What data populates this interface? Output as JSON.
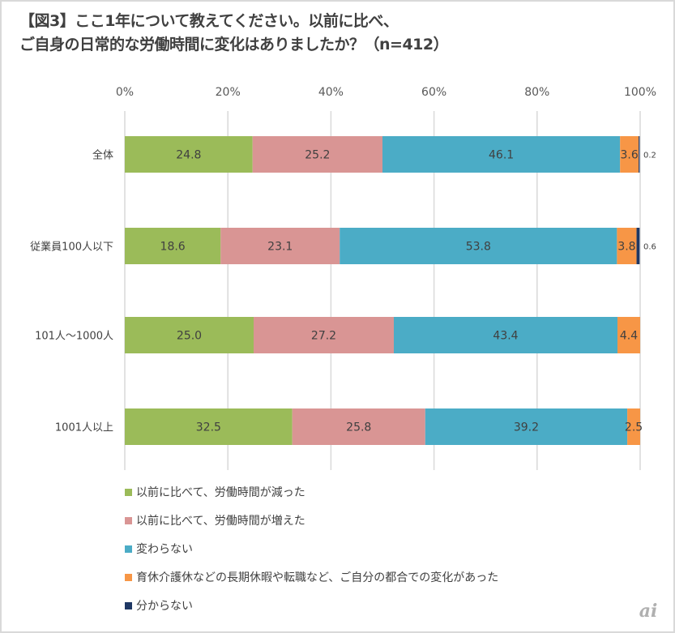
{
  "chart_data": {
    "type": "bar",
    "orientation": "horizontal",
    "stacked": "percent",
    "title": "【図3】ここ1年について教えてください。以前に比べ、ご自身の日常的な労働時間に変化はありましたか？（n=412）",
    "title_lines": [
      "【図3】ここ1年について教えてください。以前に比べ、",
      "ご自身の日常的な労働時間に変化はありましたか？（n=412）"
    ],
    "xlabel": "",
    "ylabel": "",
    "xlim": [
      0,
      100
    ],
    "x_ticks": [
      "0%",
      "20%",
      "40%",
      "60%",
      "80%",
      "100%"
    ],
    "grid": true,
    "legend_position": "bottom",
    "categories": [
      "全体",
      "従業員100人以下",
      "101人～1000人",
      "1001人以上"
    ],
    "series": [
      {
        "name": "以前に比べて、労働時間が減った",
        "color": "#9bbb59",
        "values": [
          24.8,
          18.6,
          25.0,
          32.5
        ]
      },
      {
        "name": "以前に比べて、労働時間が増えた",
        "color": "#d99594",
        "values": [
          25.2,
          23.1,
          27.2,
          25.8
        ]
      },
      {
        "name": "変わらない",
        "color": "#4bacc6",
        "values": [
          46.1,
          53.8,
          43.4,
          39.2
        ]
      },
      {
        "name": "育休介護休などの長期休暇や転職など、ご自分の都合での変化があった",
        "color": "#f79646",
        "values": [
          3.6,
          3.8,
          4.4,
          2.5
        ]
      },
      {
        "name": "分からない",
        "color": "#1f3864",
        "values": [
          0.2,
          0.6,
          0.0,
          0.0
        ]
      }
    ]
  },
  "watermark": "ai"
}
